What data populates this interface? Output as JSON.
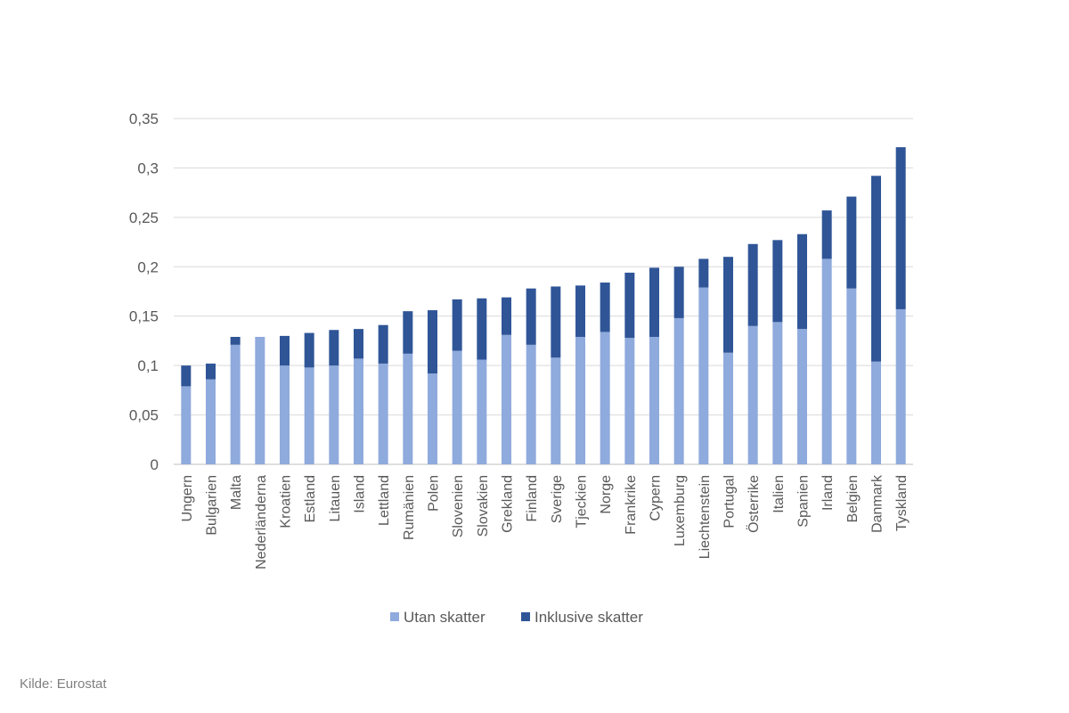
{
  "source": "Kilde: Eurostat",
  "chart_data": {
    "type": "bar",
    "stacked": true,
    "categories": [
      "Ungern",
      "Bulgarien",
      "Malta",
      "Nederländerna",
      "Kroatien",
      "Estland",
      "Litauen",
      "Island",
      "Lettland",
      "Rumänien",
      "Polen",
      "Slovenien",
      "Slovakien",
      "Grekland",
      "Finland",
      "Sverige",
      "Tjeckien",
      "Norge",
      "Frankrike",
      "Cypern",
      "Luxemburg",
      "Liechtenstein",
      "Portugal",
      "Österrike",
      "Italien",
      "Spanien",
      "Irland",
      "Belgien",
      "Danmark",
      "Tyskland"
    ],
    "series": [
      {
        "name": "Utan skatter",
        "color": "#8faadc",
        "values": [
          0.079,
          0.086,
          0.121,
          0.129,
          0.1,
          0.098,
          0.1,
          0.107,
          0.102,
          0.112,
          0.092,
          0.115,
          0.106,
          0.131,
          0.121,
          0.108,
          0.129,
          0.134,
          0.128,
          0.129,
          0.148,
          0.179,
          0.113,
          0.14,
          0.144,
          0.137,
          0.208,
          0.178,
          0.104,
          0.157
        ]
      },
      {
        "name": "Inklusive skatter",
        "color": "#2f5597",
        "values": [
          0.021,
          0.016,
          0.008,
          0.0,
          0.03,
          0.035,
          0.036,
          0.03,
          0.039,
          0.043,
          0.064,
          0.052,
          0.062,
          0.038,
          0.057,
          0.072,
          0.052,
          0.05,
          0.066,
          0.07,
          0.052,
          0.029,
          0.097,
          0.083,
          0.083,
          0.096,
          0.049,
          0.093,
          0.188,
          0.164
        ]
      }
    ],
    "ylim": [
      0,
      0.35
    ],
    "yticks": [
      "0",
      "0,05",
      "0,1",
      "0,15",
      "0,2",
      "0,25",
      "0,3",
      "0,35"
    ],
    "ytick_values": [
      0,
      0.05,
      0.1,
      0.15,
      0.2,
      0.25,
      0.3,
      0.35
    ],
    "grid": true,
    "legend": "bottom",
    "title": "",
    "xlabel": "",
    "ylabel": ""
  }
}
